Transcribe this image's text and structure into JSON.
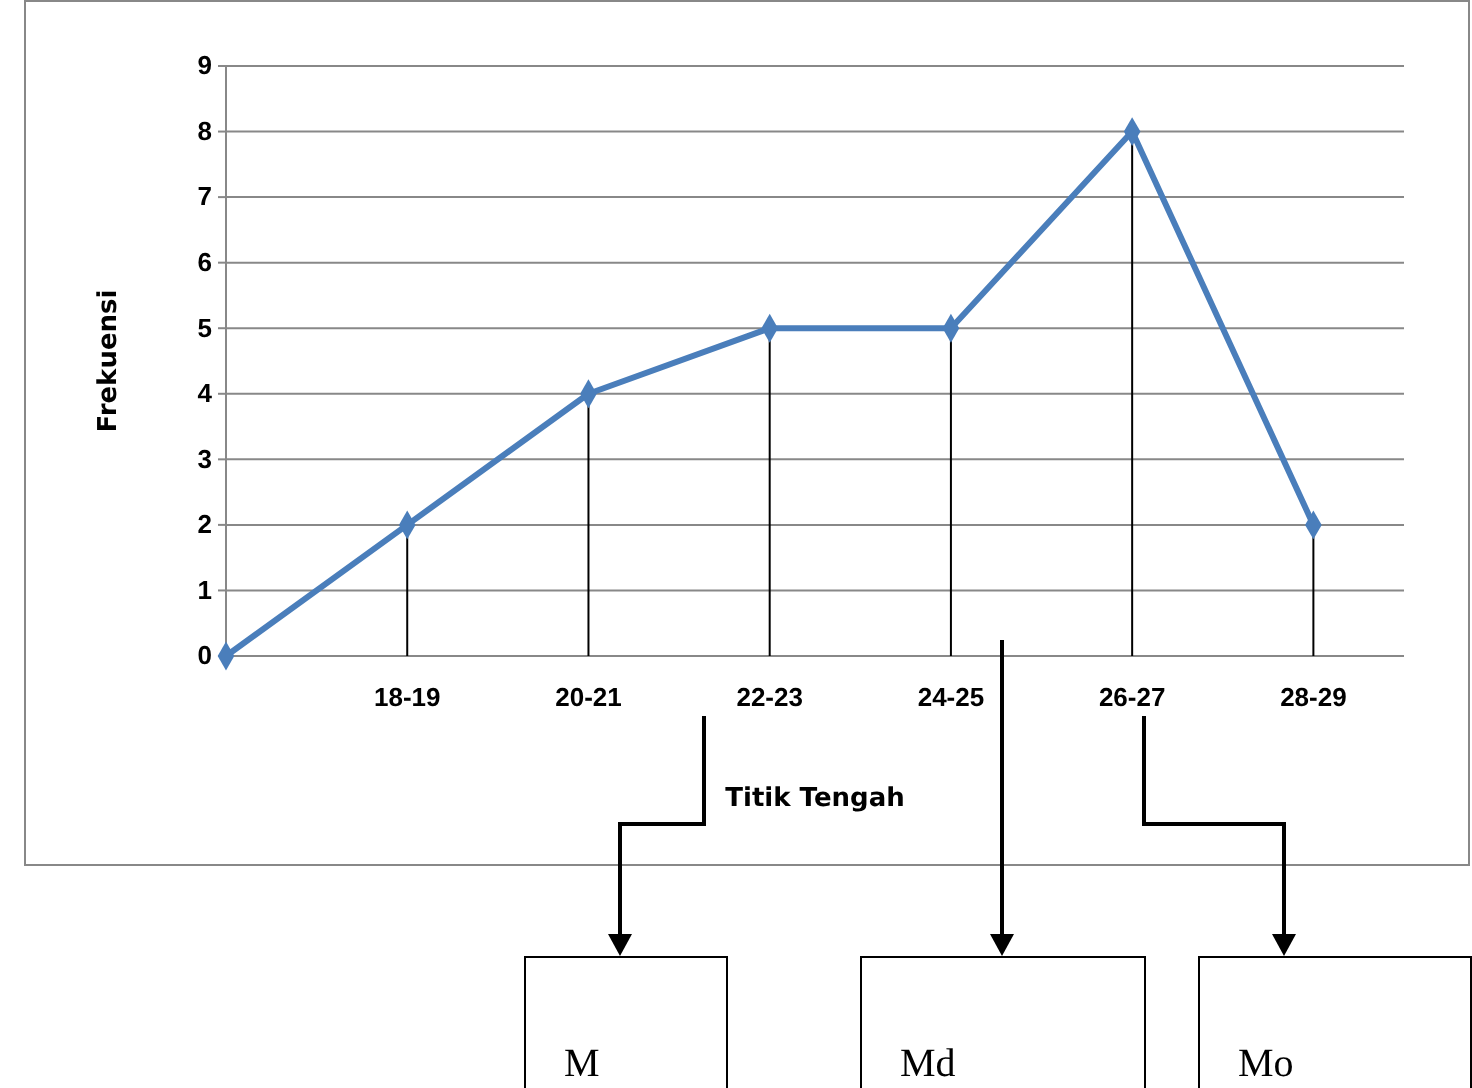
{
  "chart_data": {
    "type": "line",
    "xlabel": "Titik Tengah",
    "ylabel": "Frekuensi",
    "categories": [
      null,
      "18-19",
      "20-21",
      "22-23",
      "24-25",
      "26-27",
      "28-29"
    ],
    "series": [
      {
        "color": "#4a7ebb",
        "values": [
          0,
          2,
          4,
          5,
          5,
          8,
          2
        ],
        "errors": [
          null,
          [
            0,
            2
          ],
          [
            0,
            4
          ],
          [
            0,
            5
          ],
          [
            0,
            5
          ],
          [
            0,
            8
          ],
          [
            0,
            2
          ]
        ]
      }
    ],
    "ylim": [
      0,
      9
    ],
    "yticks": [
      0,
      1,
      2,
      3,
      4,
      5,
      6,
      7,
      8,
      9
    ],
    "grid": "y",
    "marker": "diamond",
    "line_style": "solid",
    "annotations": [
      "M",
      "Md",
      "Mo"
    ]
  }
}
